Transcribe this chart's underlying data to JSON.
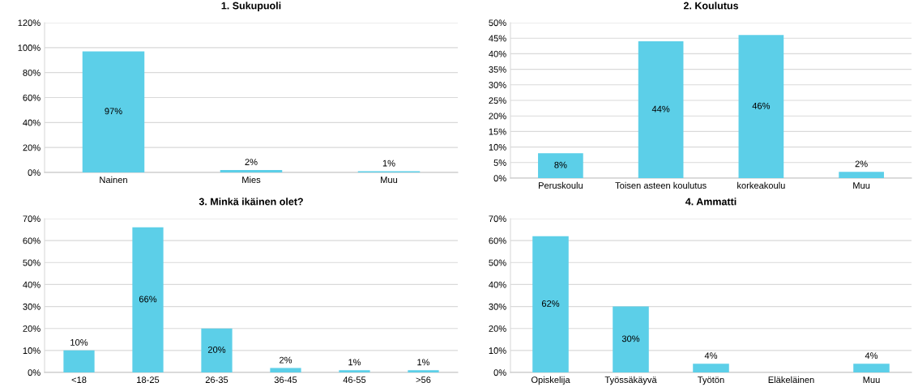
{
  "chart_data": [
    {
      "type": "bar",
      "title": "1. Sukupuoli",
      "categories": [
        "Nainen",
        "Mies",
        "Muu"
      ],
      "values": [
        97,
        2,
        1
      ],
      "value_labels": [
        "97%",
        "2%",
        "1%"
      ],
      "color": "#5ccfe8",
      "ylim": [
        0,
        120
      ],
      "yticks": [
        {
          "value": 0,
          "label": "0%"
        },
        {
          "value": 20,
          "label": "20%"
        },
        {
          "value": 40,
          "label": "40%"
        },
        {
          "value": 60,
          "label": "60%"
        },
        {
          "value": 80,
          "label": "80%"
        },
        {
          "value": 100,
          "label": "100%"
        },
        {
          "value": 120,
          "label": "120%"
        }
      ],
      "grid": "y",
      "legend": false
    },
    {
      "type": "bar",
      "title": "2. Koulutus",
      "categories": [
        "Peruskoulu",
        "Toisen asteen koulutus",
        "korkeakoulu",
        "Muu"
      ],
      "values": [
        8,
        44,
        46,
        2
      ],
      "value_labels": [
        "8%",
        "44%",
        "46%",
        "2%"
      ],
      "color": "#5ccfe8",
      "ylim": [
        0,
        50
      ],
      "yticks": [
        {
          "value": 0,
          "label": "0%"
        },
        {
          "value": 5,
          "label": "5%"
        },
        {
          "value": 10,
          "label": "10%"
        },
        {
          "value": 15,
          "label": "15%"
        },
        {
          "value": 20,
          "label": "20%"
        },
        {
          "value": 25,
          "label": "25%"
        },
        {
          "value": 30,
          "label": "30%"
        },
        {
          "value": 35,
          "label": "35%"
        },
        {
          "value": 40,
          "label": "40%"
        },
        {
          "value": 45,
          "label": "45%"
        },
        {
          "value": 50,
          "label": "50%"
        }
      ],
      "grid": "y",
      "legend": false
    },
    {
      "type": "bar",
      "title": "3. Minkä ikäinen olet?",
      "categories": [
        "<18",
        "18-25",
        "26-35",
        "36-45",
        "46-55",
        ">56"
      ],
      "values": [
        10,
        66,
        20,
        2,
        1,
        1
      ],
      "value_labels": [
        "10%",
        "66%",
        "20%",
        "2%",
        "1%",
        "1%"
      ],
      "color": "#5ccfe8",
      "ylim": [
        0,
        70
      ],
      "yticks": [
        {
          "value": 0,
          "label": "0%"
        },
        {
          "value": 10,
          "label": "10%"
        },
        {
          "value": 20,
          "label": "20%"
        },
        {
          "value": 30,
          "label": "30%"
        },
        {
          "value": 40,
          "label": "40%"
        },
        {
          "value": 50,
          "label": "50%"
        },
        {
          "value": 60,
          "label": "60%"
        },
        {
          "value": 70,
          "label": "70%"
        }
      ],
      "grid": "y",
      "legend": false
    },
    {
      "type": "bar",
      "title": "4. Ammatti",
      "categories": [
        "Opiskelija",
        "Työssäkäyvä",
        "Työtön",
        "Eläkeläinen",
        "Muu"
      ],
      "values": [
        62,
        30,
        4,
        0,
        4
      ],
      "value_labels": [
        "62%",
        "30%",
        "4%",
        null,
        "4%"
      ],
      "color": "#5ccfe8",
      "ylim": [
        0,
        70
      ],
      "yticks": [
        {
          "value": 0,
          "label": "0%"
        },
        {
          "value": 10,
          "label": "10%"
        },
        {
          "value": 20,
          "label": "20%"
        },
        {
          "value": 30,
          "label": "30%"
        },
        {
          "value": 40,
          "label": "40%"
        },
        {
          "value": 50,
          "label": "50%"
        },
        {
          "value": 60,
          "label": "60%"
        },
        {
          "value": 70,
          "label": "70%"
        }
      ],
      "grid": "y",
      "legend": false
    }
  ]
}
